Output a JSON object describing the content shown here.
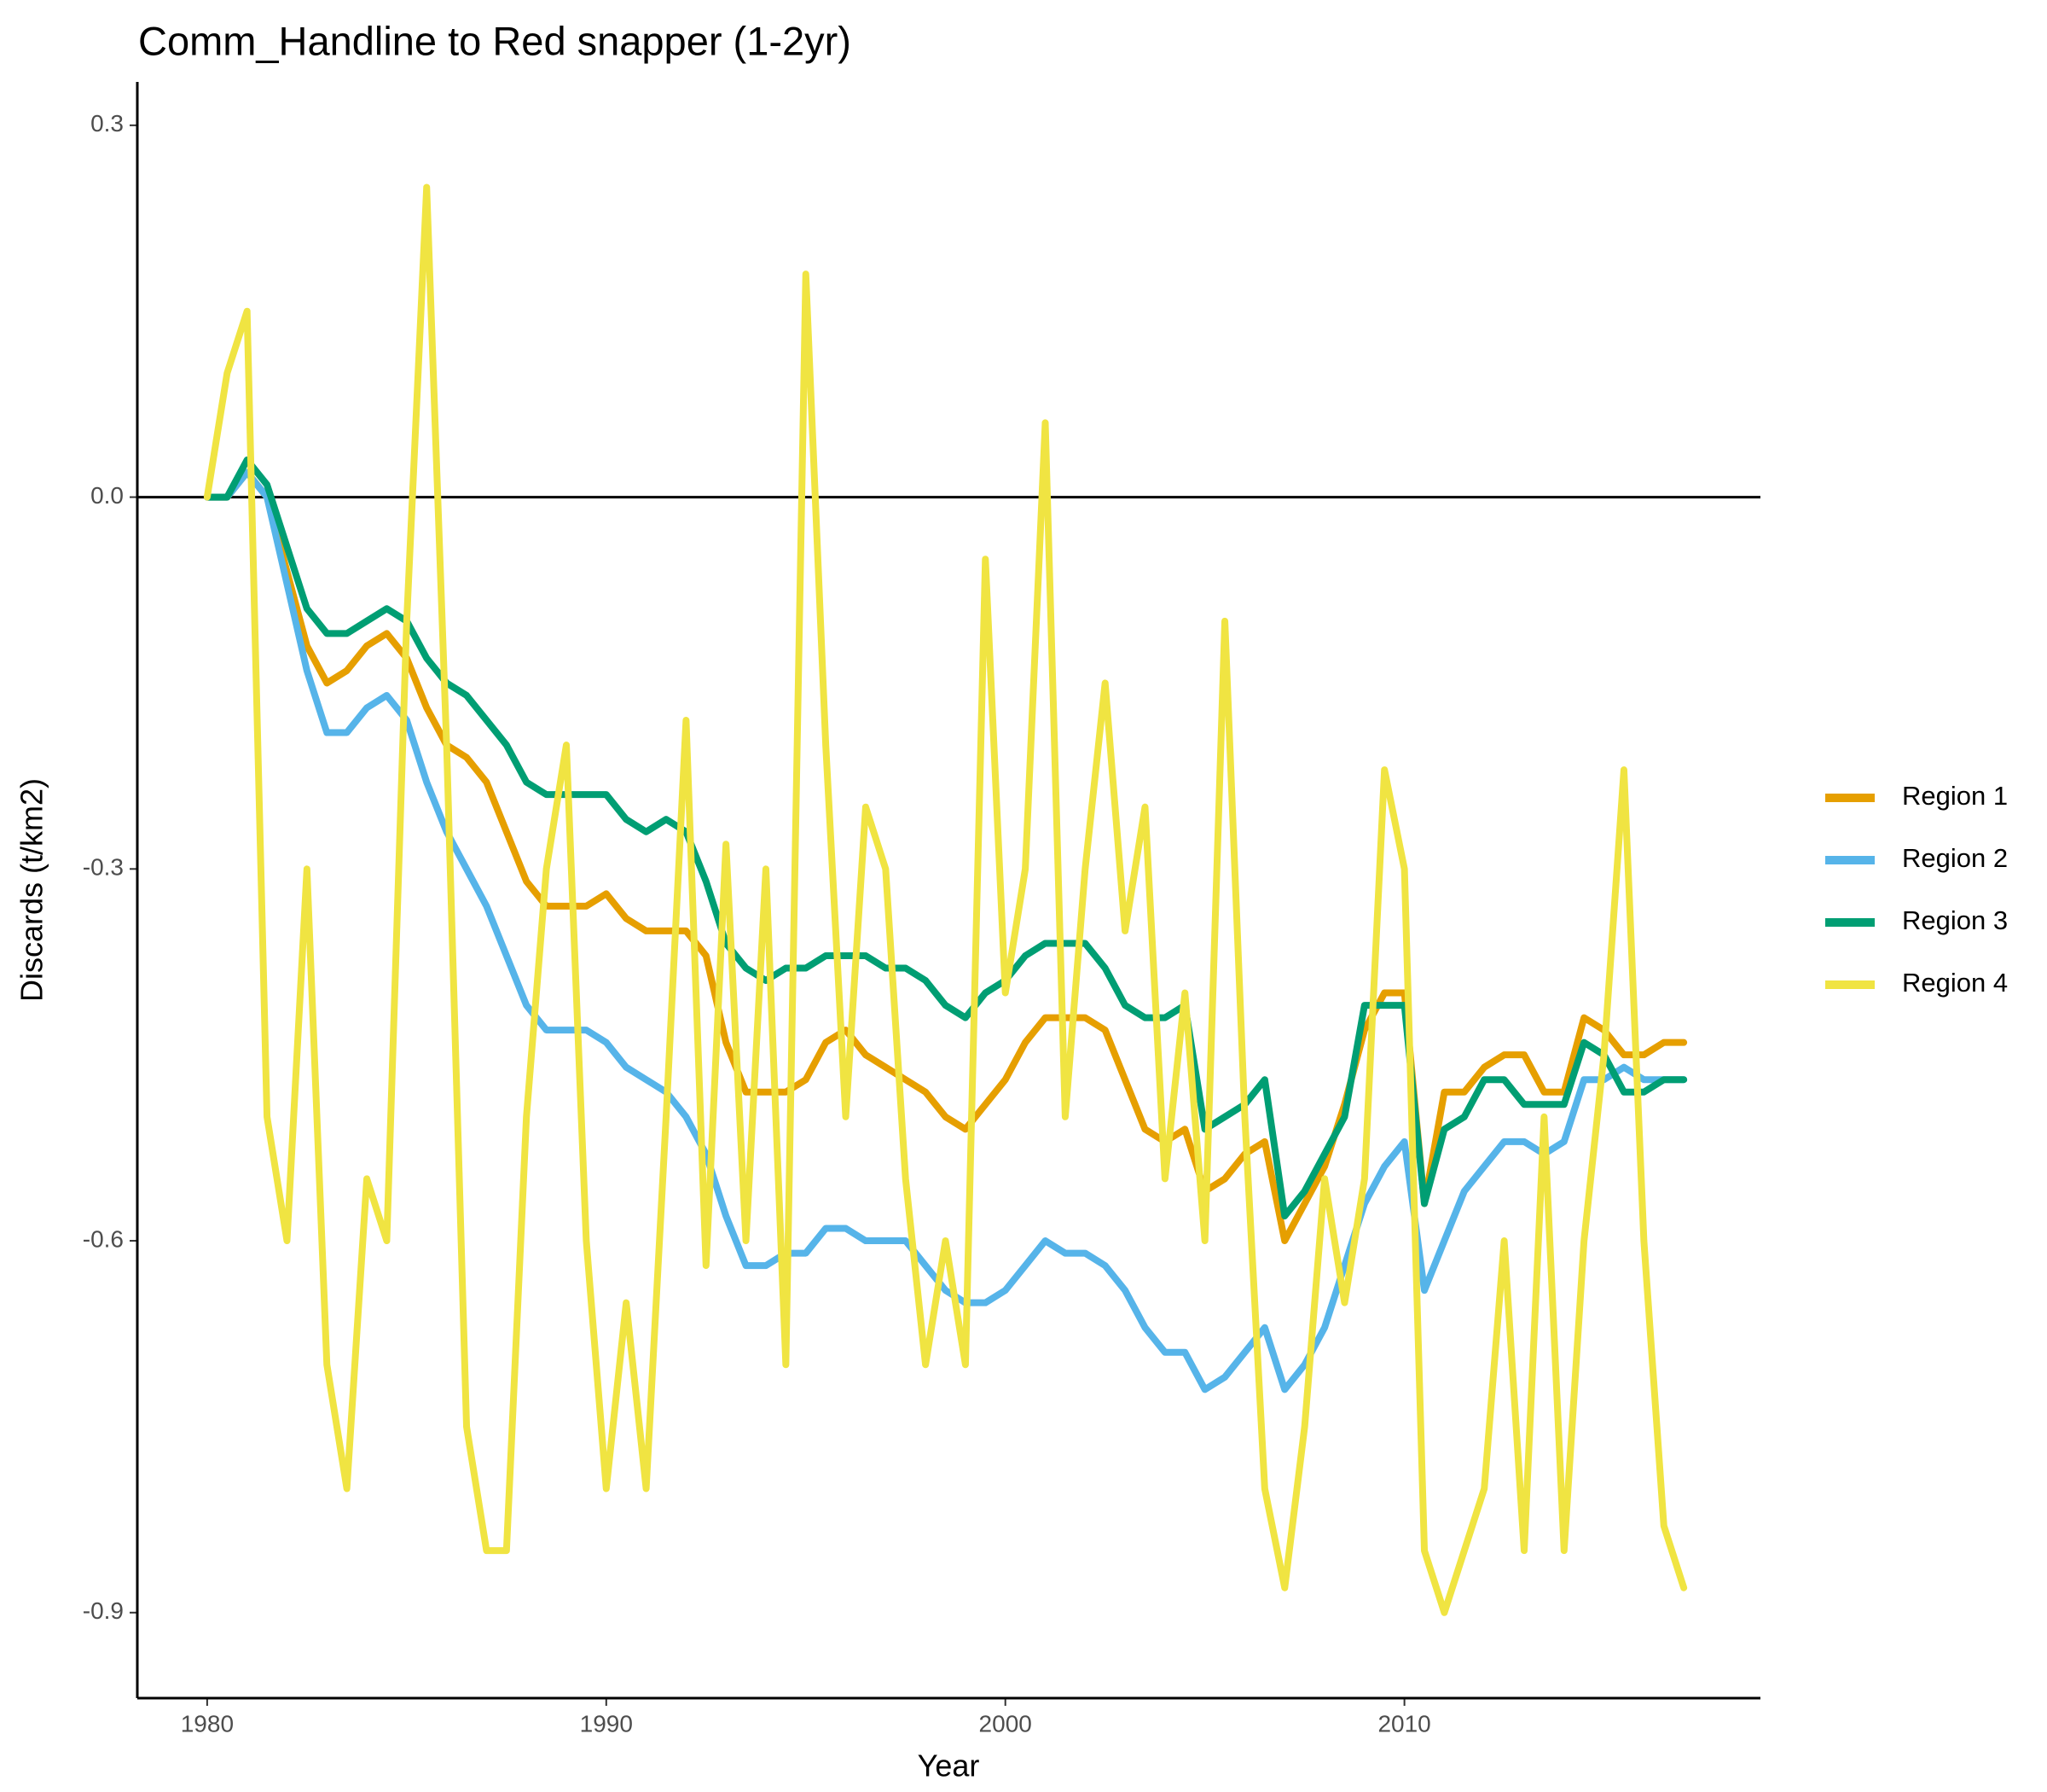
{
  "chart_data": {
    "type": "line",
    "title": "Comm_Handline to Red snapper (1-2yr)",
    "x_label": "Year",
    "y_label": "Discards (t/km2)",
    "xlim": [
      1978.25,
      2018.92
    ],
    "ylim": [
      -0.969,
      0.335
    ],
    "xticks": [
      1980,
      1990,
      2000,
      2010
    ],
    "yticks": [
      0.3,
      {
        "value": 0,
        "label": "0.0"
      },
      -0.3,
      -0.6,
      -0.9
    ],
    "hline": 0,
    "grid": false,
    "legend": "right",
    "x": [
      1980,
      1980.5,
      1981,
      1981.5,
      1982,
      1982.5,
      1983,
      1983.5,
      1984,
      1984.5,
      1985,
      1985.5,
      1986,
      1986.5,
      1987,
      1987.5,
      1988,
      1988.5,
      1989,
      1989.5,
      1990,
      1990.5,
      1991,
      1991.5,
      1992,
      1992.5,
      1993,
      1993.5,
      1994,
      1994.5,
      1995,
      1995.5,
      1996,
      1996.5,
      1997,
      1997.5,
      1998,
      1998.5,
      1999,
      1999.5,
      2000,
      2000.5,
      2001,
      2001.5,
      2002,
      2002.5,
      2003,
      2003.5,
      2004,
      2004.5,
      2005,
      2005.5,
      2006,
      2006.5,
      2007,
      2007.5,
      2008,
      2008.5,
      2009,
      2009.5,
      2010,
      2010.5,
      2011,
      2011.5,
      2012,
      2012.5,
      2013,
      2013.5,
      2014,
      2014.5,
      2015,
      2015.5,
      2016,
      2016.5,
      2017
    ],
    "series": [
      {
        "name": "Region 1",
        "color": "#e69f00",
        "values": [
          0,
          0,
          0.02,
          0,
          -0.06,
          -0.12,
          -0.15,
          -0.14,
          -0.12,
          -0.11,
          -0.13,
          -0.17,
          -0.2,
          -0.21,
          -0.23,
          -0.27,
          -0.31,
          -0.33,
          -0.33,
          -0.33,
          -0.32,
          -0.34,
          -0.35,
          -0.35,
          -0.35,
          -0.37,
          -0.44,
          -0.48,
          -0.48,
          -0.48,
          -0.47,
          -0.44,
          -0.43,
          -0.45,
          -0.46,
          -0.47,
          -0.48,
          -0.5,
          -0.51,
          -0.49,
          -0.47,
          -0.44,
          -0.42,
          -0.42,
          -0.42,
          -0.43,
          -0.47,
          -0.51,
          -0.52,
          -0.51,
          -0.56,
          -0.55,
          -0.53,
          -0.52,
          -0.6,
          -0.57,
          -0.54,
          -0.49,
          -0.43,
          -0.4,
          -0.4,
          -0.57,
          -0.48,
          -0.48,
          -0.46,
          -0.45,
          -0.45,
          -0.48,
          -0.48,
          -0.42,
          -0.43,
          -0.45,
          -0.45,
          -0.44,
          -0.44
        ]
      },
      {
        "name": "Region 2",
        "color": "#56b4e9",
        "values": [
          0,
          0,
          0.02,
          0,
          -0.07,
          -0.14,
          -0.19,
          -0.19,
          -0.17,
          -0.16,
          -0.18,
          -0.23,
          -0.27,
          -0.3,
          -0.33,
          -0.37,
          -0.41,
          -0.43,
          -0.43,
          -0.43,
          -0.44,
          -0.46,
          -0.47,
          -0.48,
          -0.5,
          -0.53,
          -0.58,
          -0.62,
          -0.62,
          -0.61,
          -0.61,
          -0.59,
          -0.59,
          -0.6,
          -0.6,
          -0.6,
          -0.62,
          -0.64,
          -0.65,
          -0.65,
          -0.64,
          -0.62,
          -0.6,
          -0.61,
          -0.61,
          -0.62,
          -0.64,
          -0.67,
          -0.69,
          -0.69,
          -0.72,
          -0.71,
          -0.69,
          -0.67,
          -0.72,
          -0.7,
          -0.67,
          -0.62,
          -0.57,
          -0.54,
          -0.52,
          -0.64,
          -0.6,
          -0.56,
          -0.54,
          -0.52,
          -0.52,
          -0.53,
          -0.52,
          -0.47,
          -0.47,
          -0.46,
          -0.47,
          -0.47,
          -0.47
        ]
      },
      {
        "name": "Region 3",
        "color": "#009e73",
        "values": [
          0,
          0,
          0.03,
          0.01,
          -0.04,
          -0.09,
          -0.11,
          -0.11,
          -0.1,
          -0.09,
          -0.1,
          -0.13,
          -0.15,
          -0.16,
          -0.18,
          -0.2,
          -0.23,
          -0.24,
          -0.24,
          -0.24,
          -0.24,
          -0.26,
          -0.27,
          -0.26,
          -0.27,
          -0.31,
          -0.36,
          -0.38,
          -0.39,
          -0.38,
          -0.38,
          -0.37,
          -0.37,
          -0.37,
          -0.38,
          -0.38,
          -0.39,
          -0.41,
          -0.42,
          -0.4,
          -0.39,
          -0.37,
          -0.36,
          -0.36,
          -0.36,
          -0.38,
          -0.41,
          -0.42,
          -0.42,
          -0.41,
          -0.51,
          -0.5,
          -0.49,
          -0.47,
          -0.58,
          -0.56,
          -0.53,
          -0.5,
          -0.41,
          -0.41,
          -0.41,
          -0.57,
          -0.51,
          -0.5,
          -0.47,
          -0.47,
          -0.49,
          -0.49,
          -0.49,
          -0.44,
          -0.45,
          -0.48,
          -0.48,
          -0.47,
          -0.47
        ]
      },
      {
        "name": "Region 4",
        "color": "#f0e442",
        "values": [
          0,
          0.1,
          0.15,
          -0.5,
          -0.6,
          -0.3,
          -0.7,
          -0.8,
          -0.55,
          -0.6,
          -0.1,
          0.25,
          -0.2,
          -0.75,
          -0.85,
          -0.85,
          -0.5,
          -0.3,
          -0.2,
          -0.6,
          -0.8,
          -0.65,
          -0.8,
          -0.5,
          -0.18,
          -0.62,
          -0.28,
          -0.6,
          -0.3,
          -0.7,
          0.18,
          -0.2,
          -0.5,
          -0.25,
          -0.3,
          -0.55,
          -0.7,
          -0.6,
          -0.7,
          -0.05,
          -0.4,
          -0.3,
          0.06,
          -0.5,
          -0.3,
          -0.15,
          -0.35,
          -0.25,
          -0.55,
          -0.4,
          -0.6,
          -0.1,
          -0.5,
          -0.8,
          -0.88,
          -0.75,
          -0.55,
          -0.65,
          -0.55,
          -0.22,
          -0.3,
          -0.85,
          -0.9,
          -0.85,
          -0.8,
          -0.6,
          -0.85,
          -0.5,
          -0.85,
          -0.6,
          -0.45,
          -0.22,
          -0.6,
          -0.83,
          -0.88
        ]
      }
    ]
  }
}
